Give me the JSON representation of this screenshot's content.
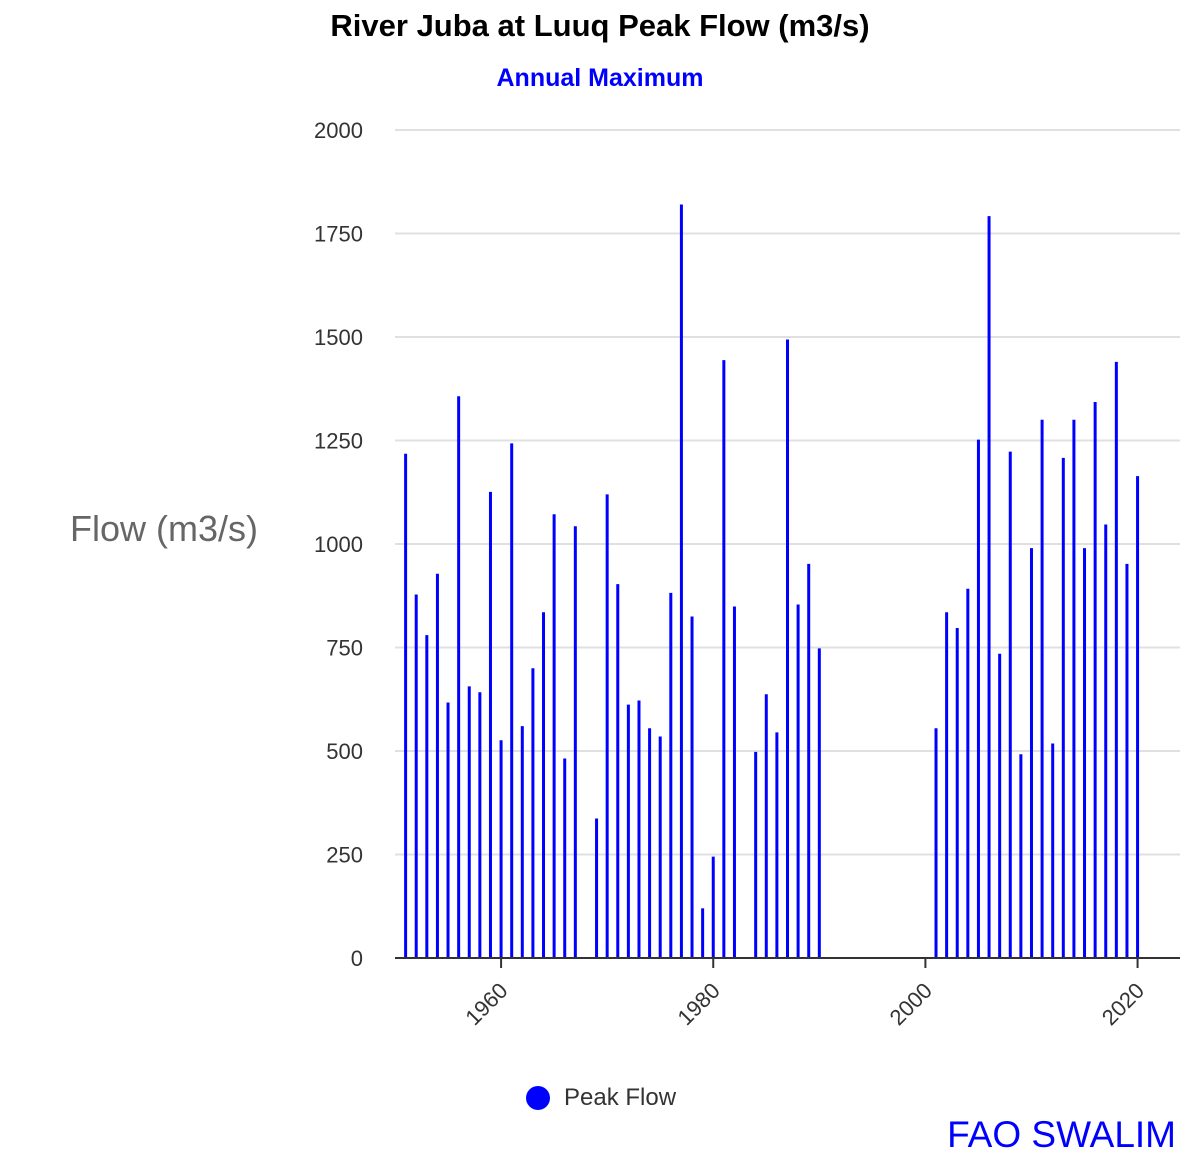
{
  "chart_data": {
    "type": "bar",
    "title": "River Juba at Luuq Peak Flow (m3/s)",
    "subtitle": "Annual Maximum",
    "ylabel": "Flow (m3/s)",
    "xlabel": "",
    "ylim": [
      0,
      2000
    ],
    "yticks": [
      "0",
      "250",
      "500",
      "750",
      "1000",
      "1250",
      "1500",
      "1750",
      "2000"
    ],
    "xlim": [
      1950,
      2024
    ],
    "xticks": [
      "1960",
      "1980",
      "2000",
      "2020"
    ],
    "grid": true,
    "legend_position": "bottom",
    "series": [
      {
        "name": "Peak Flow",
        "color": "#0000ff",
        "x": [
          1951,
          1952,
          1953,
          1954,
          1955,
          1956,
          1957,
          1958,
          1959,
          1960,
          1961,
          1962,
          1963,
          1964,
          1965,
          1966,
          1967,
          1969,
          1970,
          1971,
          1972,
          1973,
          1974,
          1975,
          1976,
          1977,
          1978,
          1979,
          1980,
          1981,
          1982,
          1984,
          1985,
          1986,
          1987,
          1988,
          1989,
          1990,
          2001,
          2002,
          2003,
          2004,
          2005,
          2006,
          2007,
          2008,
          2009,
          2010,
          2011,
          2012,
          2013,
          2014,
          2015,
          2016,
          2017,
          2018,
          2019,
          2020
        ],
        "values": [
          1218,
          878,
          780,
          928,
          617,
          1357,
          656,
          642,
          1126,
          526,
          1243,
          560,
          700,
          835,
          1072,
          482,
          1043,
          337,
          1120,
          903,
          612,
          622,
          555,
          535,
          882,
          1820,
          825,
          120,
          245,
          1444,
          849,
          498,
          637,
          545,
          1494,
          854,
          952,
          748,
          555,
          835,
          797,
          892,
          1252,
          1792,
          735,
          1223,
          492,
          990,
          1300,
          518,
          1208,
          1300,
          990,
          1343,
          1047,
          1440,
          952,
          1164
        ]
      }
    ],
    "legend": [
      "Peak Flow"
    ],
    "source_label": "FAO SWALIM"
  }
}
